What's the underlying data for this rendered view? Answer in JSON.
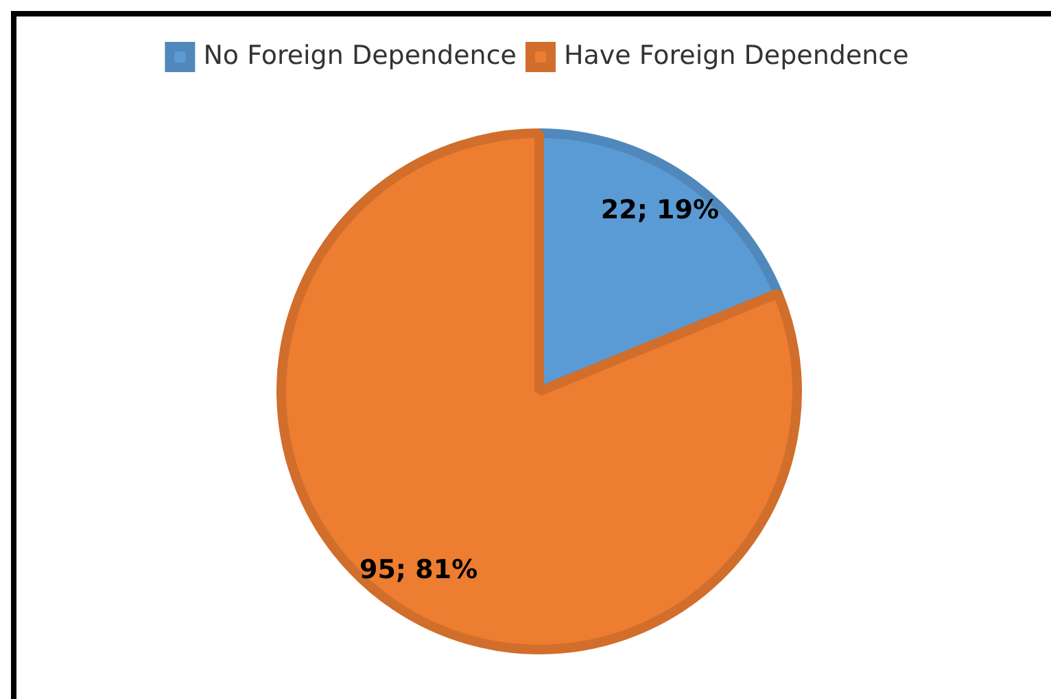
{
  "chart_data": {
    "type": "pie",
    "categories": [
      "No Foreign Dependence",
      "Have Foreign Dependence"
    ],
    "values": [
      22,
      95
    ],
    "colors": [
      "#5b9bd5",
      "#ed7d31"
    ],
    "value_labels": [
      "22; 19%",
      "95; 81%"
    ],
    "legend": "top"
  }
}
